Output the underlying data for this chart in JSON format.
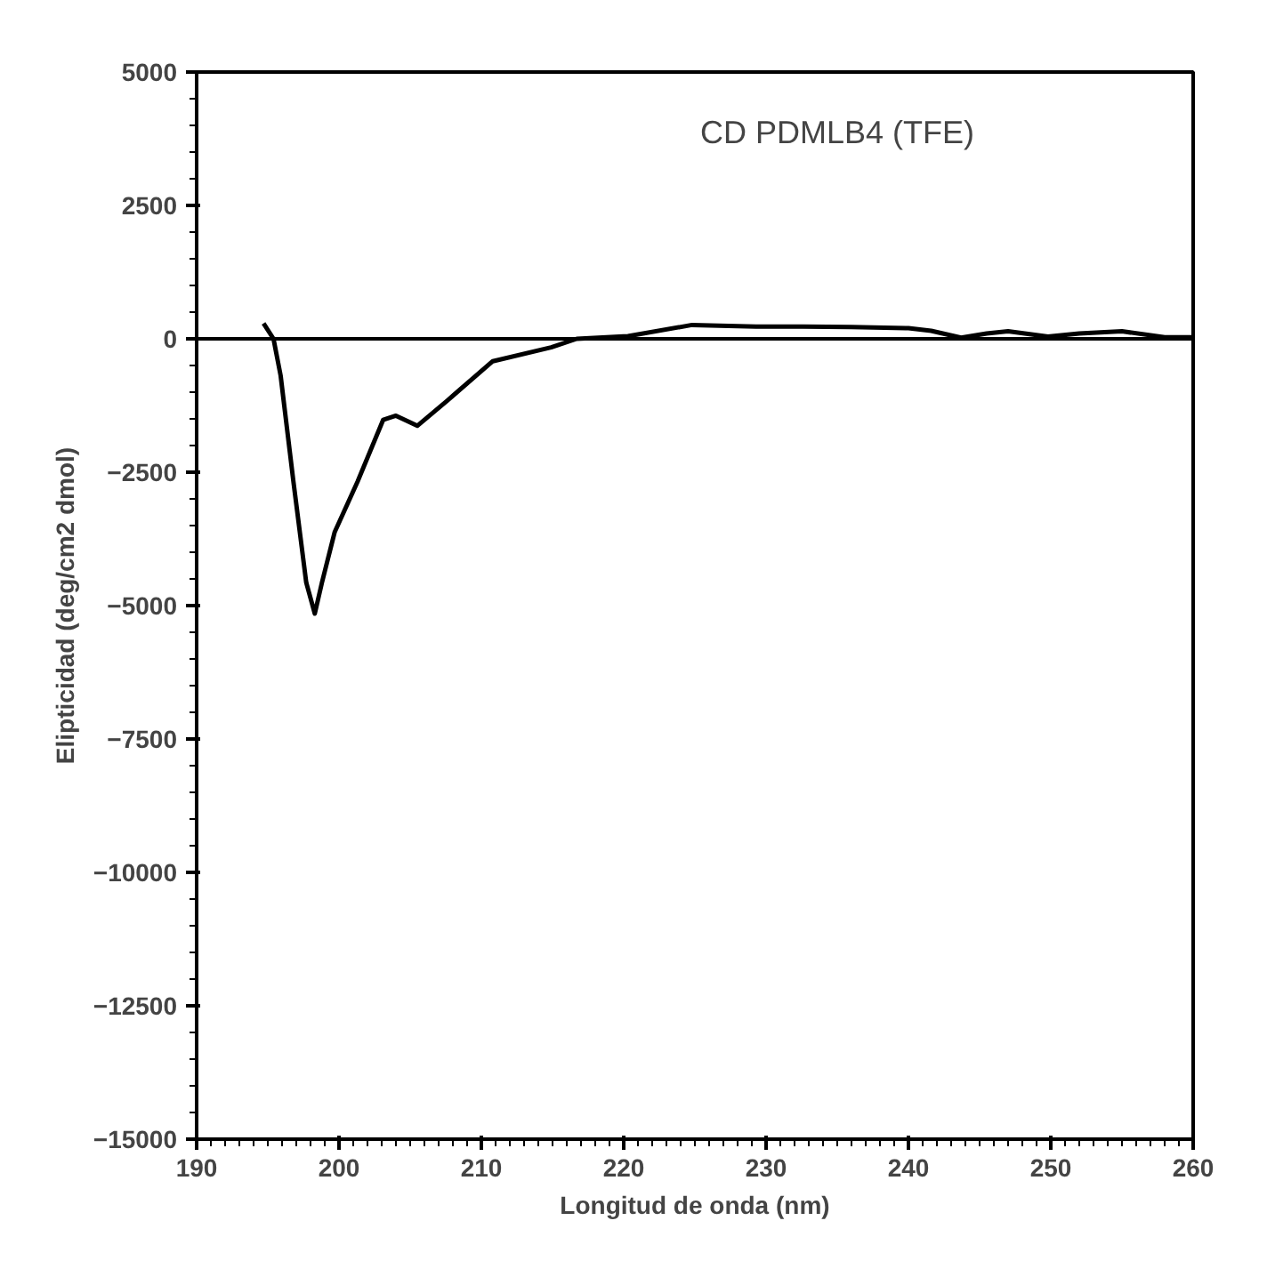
{
  "chart_data": {
    "type": "line",
    "title": "CD PDMLB4 (TFE)",
    "xlabel": "Longitud de onda (nm)",
    "ylabel": "Elipticidad (deg/cm2 dmol)",
    "x": [
      194.7,
      195.4,
      195.9,
      196.8,
      197.7,
      198.3,
      198.8,
      199.7,
      201.3,
      203.1,
      204.0,
      205.5,
      207.6,
      210.8,
      214.9,
      216.7,
      220.3,
      224.8,
      229.3,
      232.6,
      236,
      240,
      241.6,
      243.7,
      245.5,
      247,
      249.8,
      252,
      255,
      258,
      260
    ],
    "values": [
      290,
      0,
      -690,
      -2680,
      -4570,
      -5150,
      -4570,
      -3620,
      -2680,
      -1520,
      -1440,
      -1630,
      -1160,
      -420,
      -160,
      0,
      50,
      260,
      230,
      230,
      220,
      200,
      150,
      20,
      100,
      140,
      40,
      100,
      140,
      30,
      30
    ],
    "color": "#000000",
    "xlim": [
      190,
      260
    ],
    "ylim": [
      -15000,
      5000
    ],
    "xticks": [
      190,
      200,
      210,
      220,
      230,
      240,
      250,
      260
    ],
    "yticks": [
      -15000,
      -12500,
      -10000,
      -7500,
      -5000,
      -2500,
      0,
      2500,
      5000
    ],
    "ref_lines": [
      {
        "axis": "y",
        "value": 0,
        "color": "#000000"
      }
    ],
    "grid": false,
    "marker": "none",
    "line_style": "solid"
  }
}
